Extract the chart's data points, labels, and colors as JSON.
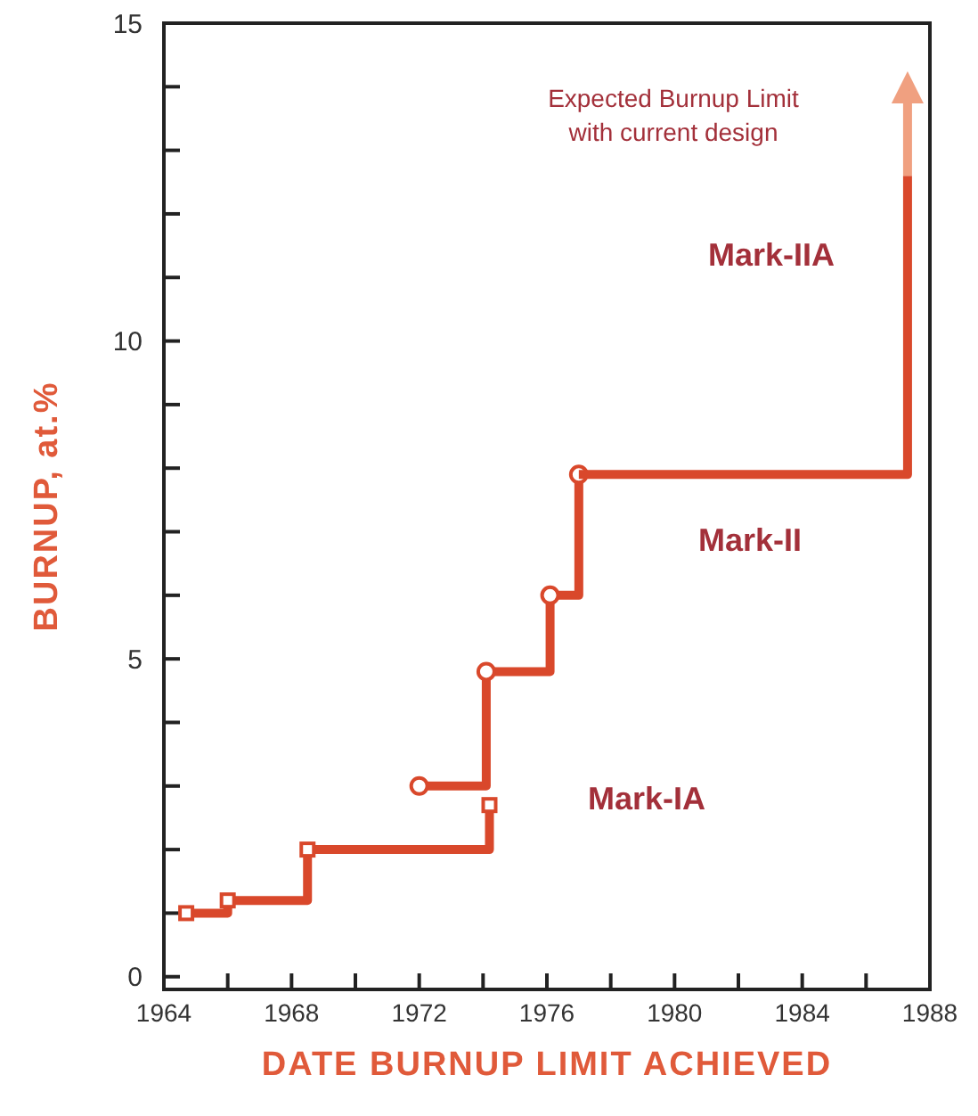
{
  "chart_data": {
    "type": "step",
    "xlabel": "DATE BURNUP LIMIT ACHIEVED",
    "ylabel": "BURNUP, at.%",
    "xlim": [
      1964,
      1988
    ],
    "ylim": [
      -0.2,
      15
    ],
    "xticks": [
      1964,
      {
        "value": 1966,
        "label": null
      },
      1968,
      {
        "value": 1970,
        "label": null
      },
      1972,
      {
        "value": 1974,
        "label": null
      },
      1976,
      {
        "value": 1978,
        "label": null
      },
      1980,
      {
        "value": 1982,
        "label": null
      },
      1984,
      {
        "value": 1986,
        "label": null
      },
      1988
    ],
    "yticks": [
      0,
      {
        "value": 1,
        "label": null
      },
      {
        "value": 2,
        "label": null
      },
      {
        "value": 3,
        "label": null
      },
      {
        "value": 4,
        "label": null
      },
      5,
      {
        "value": 6,
        "label": null
      },
      {
        "value": 7,
        "label": null
      },
      {
        "value": 8,
        "label": null
      },
      {
        "value": 9,
        "label": null
      },
      10,
      {
        "value": 11,
        "label": null
      },
      {
        "value": 12,
        "label": null
      },
      {
        "value": 13,
        "label": null
      },
      {
        "value": 14,
        "label": null
      },
      15
    ],
    "grid": false,
    "line_style": "solid",
    "series": [
      {
        "color": "#d9482b",
        "marker": "square",
        "x": [
          1964.7,
          1966.0,
          1968.5,
          1974.2
        ],
        "values": [
          1.0,
          1.2,
          2.0,
          2.7
        ]
      },
      {
        "color": "#d9482b",
        "marker": "circle",
        "x": [
          1972.0,
          1974.1,
          1976.1,
          1977.0
        ],
        "values": [
          3.0,
          4.8,
          6.0,
          7.9
        ]
      },
      {
        "color": "#d9482b",
        "marker": "none",
        "x": [
          1977.0,
          1987.3,
          1987.3
        ],
        "values": [
          7.9,
          7.9,
          12.6
        ]
      }
    ],
    "annotations": [
      "Expected Burnup Limit\nwith current design",
      "Mark-IA",
      "Mark-II",
      "Mark-IIA"
    ]
  }
}
